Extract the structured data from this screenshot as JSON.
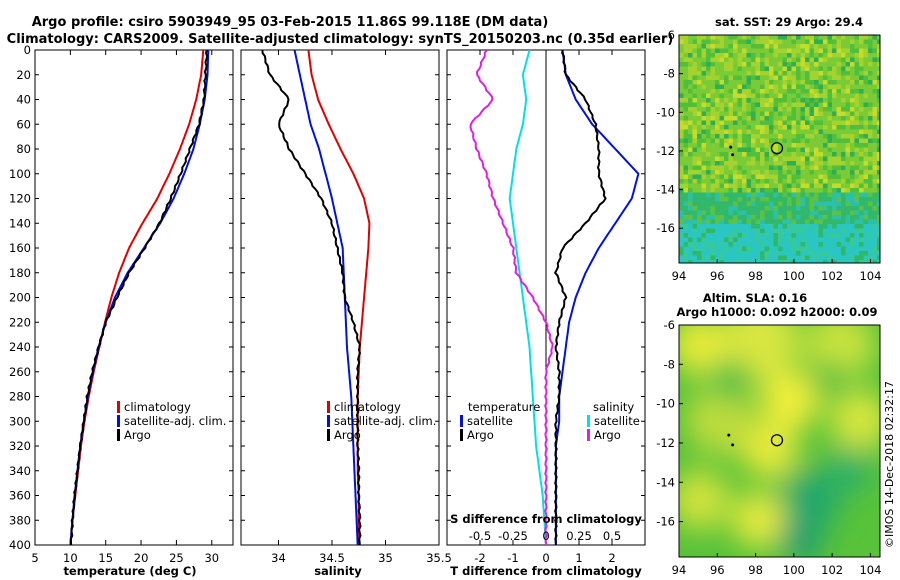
{
  "title": {
    "line1": "Argo profile: csiro 5903949_95 03-Feb-2015 11.86S 99.118E (DM data)",
    "line2": "Climatology: CARS2009. Satellite-adjusted climatology: synTS_20150203.nc (0.35d earlier)"
  },
  "colors": {
    "climatology": "#e00000",
    "satellite": "#0010e0",
    "argo": "#000000",
    "t_satellite": "#00e0e8",
    "s_satellite": "#e020e0",
    "marker": "#ffd000"
  },
  "depth_ticks": [
    "0",
    "20",
    "40",
    "60",
    "80",
    "100",
    "120",
    "140",
    "160",
    "180",
    "200",
    "220",
    "240",
    "260",
    "280",
    "300",
    "320",
    "340",
    "360",
    "380",
    "400"
  ],
  "chart_data": [
    {
      "type": "line",
      "name": "temperature",
      "xlabel": "temperature (deg C)",
      "ylabel": "",
      "xlim": [
        5,
        33
      ],
      "ylim": [
        400,
        0
      ],
      "x_ticks": [
        "5",
        "10",
        "15",
        "20",
        "25",
        "30"
      ],
      "legend": {
        "placement": "bottom-right",
        "entries": [
          "climatology",
          "satellite-adj. clim.",
          "Argo"
        ]
      },
      "series": [
        {
          "name": "climatology",
          "color": "#e00000",
          "points": [
            [
              28.8,
              0
            ],
            [
              28.5,
              20
            ],
            [
              27.8,
              40
            ],
            [
              26.8,
              60
            ],
            [
              25.5,
              80
            ],
            [
              24.0,
              100
            ],
            [
              22.3,
              120
            ],
            [
              20.2,
              140
            ],
            [
              18.3,
              160
            ],
            [
              16.9,
              180
            ],
            [
              15.8,
              200
            ],
            [
              14.9,
              220
            ],
            [
              14.1,
              240
            ],
            [
              13.3,
              260
            ],
            [
              12.6,
              280
            ],
            [
              12.0,
              300
            ],
            [
              11.5,
              320
            ],
            [
              11.1,
              340
            ],
            [
              10.7,
              360
            ],
            [
              10.3,
              380
            ],
            [
              10.0,
              400
            ]
          ]
        },
        {
          "name": "satellite-adj. clim.",
          "color": "#0010e0",
          "points": [
            [
              29.5,
              0
            ],
            [
              29.4,
              20
            ],
            [
              29.0,
              40
            ],
            [
              28.3,
              60
            ],
            [
              27.4,
              80
            ],
            [
              26.1,
              100
            ],
            [
              24.6,
              120
            ],
            [
              22.7,
              140
            ],
            [
              20.4,
              160
            ],
            [
              18.1,
              180
            ],
            [
              16.3,
              200
            ],
            [
              15.0,
              220
            ],
            [
              14.0,
              240
            ],
            [
              13.2,
              260
            ],
            [
              12.5,
              280
            ],
            [
              11.9,
              300
            ],
            [
              11.4,
              320
            ],
            [
              11.0,
              340
            ],
            [
              10.6,
              360
            ],
            [
              10.3,
              380
            ],
            [
              10.0,
              400
            ]
          ]
        },
        {
          "name": "Argo",
          "color": "#000000",
          "points": [
            [
              29.3,
              0
            ],
            [
              29.1,
              20
            ],
            [
              28.9,
              40
            ],
            [
              28.2,
              60
            ],
            [
              26.9,
              80
            ],
            [
              25.6,
              100
            ],
            [
              24.2,
              120
            ],
            [
              22.6,
              140
            ],
            [
              20.5,
              160
            ],
            [
              18.3,
              180
            ],
            [
              16.6,
              200
            ],
            [
              15.0,
              220
            ],
            [
              14.0,
              240
            ],
            [
              13.1,
              260
            ],
            [
              12.4,
              280
            ],
            [
              11.9,
              300
            ],
            [
              11.4,
              320
            ],
            [
              11.0,
              340
            ],
            [
              10.6,
              360
            ],
            [
              10.3,
              380
            ],
            [
              10.1,
              400
            ]
          ]
        }
      ]
    },
    {
      "type": "line",
      "name": "salinity",
      "xlabel": "salinity",
      "xlim": [
        33.65,
        35.5
      ],
      "ylim": [
        400,
        0
      ],
      "x_ticks": [
        "34",
        "34.5",
        "35",
        "35.5"
      ],
      "legend": {
        "placement": "bottom-right",
        "entries": [
          "climatology",
          "satellite-adj. clim.",
          "Argo"
        ]
      },
      "series": [
        {
          "name": "climatology",
          "color": "#e00000",
          "points": [
            [
              34.28,
              0
            ],
            [
              34.31,
              20
            ],
            [
              34.37,
              40
            ],
            [
              34.47,
              60
            ],
            [
              34.58,
              80
            ],
            [
              34.7,
              100
            ],
            [
              34.8,
              120
            ],
            [
              34.85,
              140
            ],
            [
              34.84,
              160
            ],
            [
              34.82,
              180
            ],
            [
              34.8,
              200
            ],
            [
              34.78,
              220
            ],
            [
              34.76,
              240
            ],
            [
              34.75,
              260
            ],
            [
              34.74,
              280
            ],
            [
              34.74,
              300
            ],
            [
              34.74,
              320
            ],
            [
              34.74,
              340
            ],
            [
              34.75,
              360
            ],
            [
              34.75,
              380
            ],
            [
              34.75,
              400
            ]
          ]
        },
        {
          "name": "satellite-adj. clim.",
          "color": "#0010e0",
          "points": [
            [
              34.15,
              0
            ],
            [
              34.2,
              20
            ],
            [
              34.25,
              40
            ],
            [
              34.3,
              60
            ],
            [
              34.38,
              80
            ],
            [
              34.44,
              100
            ],
            [
              34.5,
              120
            ],
            [
              34.55,
              140
            ],
            [
              34.6,
              160
            ],
            [
              34.61,
              180
            ],
            [
              34.62,
              200
            ],
            [
              34.63,
              220
            ],
            [
              34.64,
              240
            ],
            [
              34.66,
              260
            ],
            [
              34.68,
              280
            ],
            [
              34.69,
              300
            ],
            [
              34.7,
              320
            ],
            [
              34.71,
              340
            ],
            [
              34.72,
              360
            ],
            [
              34.73,
              380
            ],
            [
              34.74,
              400
            ]
          ]
        },
        {
          "name": "Argo",
          "color": "#000000",
          "points": [
            [
              33.85,
              0
            ],
            [
              33.92,
              20
            ],
            [
              34.1,
              40
            ],
            [
              34.0,
              60
            ],
            [
              34.1,
              80
            ],
            [
              34.25,
              100
            ],
            [
              34.4,
              120
            ],
            [
              34.5,
              140
            ],
            [
              34.55,
              160
            ],
            [
              34.6,
              180
            ],
            [
              34.62,
              200
            ],
            [
              34.7,
              220
            ],
            [
              34.76,
              240
            ],
            [
              34.74,
              260
            ],
            [
              34.74,
              280
            ],
            [
              34.74,
              300
            ],
            [
              34.74,
              320
            ],
            [
              34.75,
              340
            ],
            [
              34.75,
              360
            ],
            [
              34.76,
              380
            ],
            [
              34.76,
              400
            ]
          ]
        }
      ]
    },
    {
      "type": "line",
      "name": "differences",
      "xlabel": "T difference from climatology",
      "secondary_xlabel": "S difference from climatology",
      "xlim": [
        -3,
        3
      ],
      "ylim": [
        400,
        0
      ],
      "x_ticks": [
        "-2",
        "-1",
        "0",
        "1",
        "2"
      ],
      "secondary_x_ticks": [
        "-0.5",
        "-0.25",
        "0",
        "0.25",
        "0.5"
      ],
      "legend": {
        "placement": "bottom",
        "temperature_title": "temperature",
        "salinity_title": "salinity",
        "entries": [
          "satellite",
          "Argo",
          "satellite",
          "Argo"
        ]
      },
      "series": [
        {
          "name": "temperature satellite",
          "color": "#0010e0",
          "points": [
            [
              0.5,
              0
            ],
            [
              0.6,
              20
            ],
            [
              0.9,
              40
            ],
            [
              1.4,
              60
            ],
            [
              2.1,
              80
            ],
            [
              2.8,
              100
            ],
            [
              2.6,
              120
            ],
            [
              2.1,
              140
            ],
            [
              1.6,
              160
            ],
            [
              1.2,
              180
            ],
            [
              0.9,
              200
            ],
            [
              0.7,
              220
            ],
            [
              0.6,
              240
            ],
            [
              0.5,
              260
            ],
            [
              0.4,
              280
            ],
            [
              0.4,
              300
            ],
            [
              0.3,
              320
            ],
            [
              0.3,
              340
            ],
            [
              0.3,
              360
            ],
            [
              0.3,
              380
            ],
            [
              0.3,
              400
            ]
          ]
        },
        {
          "name": "temperature Argo",
          "color": "#000000",
          "points": [
            [
              0.5,
              0
            ],
            [
              0.6,
              20
            ],
            [
              1.2,
              40
            ],
            [
              1.5,
              60
            ],
            [
              1.6,
              80
            ],
            [
              1.6,
              100
            ],
            [
              1.8,
              120
            ],
            [
              1.2,
              140
            ],
            [
              0.5,
              160
            ],
            [
              0.3,
              180
            ],
            [
              0.6,
              200
            ],
            [
              0.4,
              220
            ],
            [
              0.3,
              240
            ],
            [
              0.4,
              260
            ],
            [
              0.4,
              280
            ],
            [
              0.3,
              300
            ],
            [
              0.3,
              320
            ],
            [
              0.3,
              340
            ],
            [
              0.3,
              360
            ],
            [
              0.3,
              380
            ],
            [
              0.3,
              400
            ]
          ]
        },
        {
          "name": "salinity satellite",
          "color": "#00e0e8",
          "points": [
            [
              -0.5,
              0
            ],
            [
              -0.7,
              20
            ],
            [
              -0.6,
              40
            ],
            [
              -0.7,
              60
            ],
            [
              -0.9,
              80
            ],
            [
              -1.0,
              100
            ],
            [
              -1.1,
              120
            ],
            [
              -1.0,
              140
            ],
            [
              -0.9,
              160
            ],
            [
              -0.8,
              180
            ],
            [
              -0.7,
              200
            ],
            [
              -0.6,
              220
            ],
            [
              -0.5,
              240
            ],
            [
              -0.45,
              260
            ],
            [
              -0.4,
              280
            ],
            [
              -0.35,
              300
            ],
            [
              -0.3,
              320
            ],
            [
              -0.2,
              340
            ],
            [
              -0.1,
              360
            ],
            [
              -0.05,
              380
            ],
            [
              0.0,
              400
            ]
          ]
        },
        {
          "name": "salinity Argo",
          "color": "#e020e0",
          "points": [
            [
              -1.8,
              0
            ],
            [
              -2.1,
              20
            ],
            [
              -1.6,
              40
            ],
            [
              -2.3,
              60
            ],
            [
              -2.1,
              80
            ],
            [
              -1.8,
              100
            ],
            [
              -1.6,
              120
            ],
            [
              -1.3,
              140
            ],
            [
              -1.0,
              160
            ],
            [
              -0.9,
              180
            ],
            [
              -0.4,
              200
            ],
            [
              0.0,
              220
            ],
            [
              0.2,
              240
            ],
            [
              0.0,
              260
            ],
            [
              0.0,
              280
            ],
            [
              0.0,
              300
            ],
            [
              0.0,
              320
            ],
            [
              0.0,
              340
            ],
            [
              0.0,
              360
            ],
            [
              0.0,
              380
            ],
            [
              0.0,
              400
            ]
          ]
        }
      ]
    },
    {
      "type": "heatmap",
      "name": "sst_map",
      "title": "sat. SST: 29 Argo: 29.4",
      "xlim": [
        94,
        104.5
      ],
      "ylim": [
        -17.8,
        -6
      ],
      "x_ticks": [
        "94",
        "96",
        "98",
        "100",
        "102",
        "104"
      ],
      "y_ticks": [
        "-6",
        "-8",
        "-10",
        "-12",
        "-14",
        "-16"
      ],
      "argo_location": {
        "lon": 99.118,
        "lat": -11.86
      },
      "track_points": [
        {
          "lon": 96.7,
          "lat": -11.8
        },
        {
          "lon": 96.8,
          "lat": -12.2
        }
      ]
    },
    {
      "type": "heatmap",
      "name": "sla_map",
      "title": "Altim. SLA: 0.16",
      "subtitle": "Argo h1000: 0.092 h2000: 0.09",
      "xlim": [
        94,
        104.5
      ],
      "ylim": [
        -17.8,
        -6
      ],
      "x_ticks": [
        "94",
        "96",
        "98",
        "100",
        "102",
        "104"
      ],
      "y_ticks": [
        "-6",
        "-8",
        "-10",
        "-12",
        "-14",
        "-16"
      ],
      "argo_location": {
        "lon": 99.118,
        "lat": -11.86
      },
      "track_points": [
        {
          "lon": 96.6,
          "lat": -11.6
        },
        {
          "lon": 96.8,
          "lat": -12.1
        }
      ]
    }
  ],
  "footer": {
    "stamp": "©IMOS 14-Dec-2018 02:32:17"
  }
}
